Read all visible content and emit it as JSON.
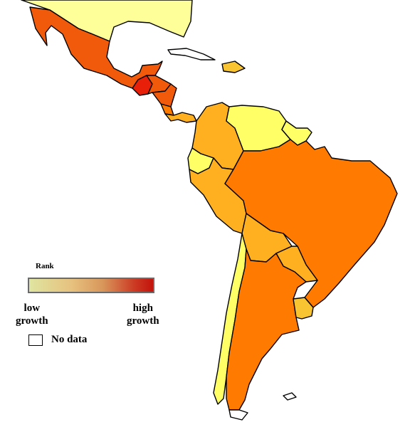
{
  "legend": {
    "title": "Rank",
    "low_label_1": "low",
    "low_label_2": "growth",
    "high_label_1": "high",
    "high_label_2": "growth",
    "nodata_label": "No data",
    "gradient_start_color": "#dfe5a0",
    "gradient_end_color": "#c4130c"
  },
  "colors": {
    "pale_yellow": "#ffff99",
    "yellow": "#ffff66",
    "gold": "#f9c431",
    "light_orange": "#ffb020",
    "orange": "#ff9900",
    "dark_orange": "#ff7a00",
    "orange_red": "#f05a0a",
    "red": "#e8200a",
    "no_data": "#ffffff"
  },
  "regions": [
    {
      "name": "United States",
      "color_key": "pale_yellow"
    },
    {
      "name": "Mexico",
      "color_key": "orange_red"
    },
    {
      "name": "Guatemala",
      "color_key": "red"
    },
    {
      "name": "Honduras",
      "color_key": "orange_red"
    },
    {
      "name": "Nicaragua",
      "color_key": "orange_red"
    },
    {
      "name": "Costa Rica",
      "color_key": "dark_orange"
    },
    {
      "name": "Panama",
      "color_key": "light_orange"
    },
    {
      "name": "Dominican Republic",
      "color_key": "gold"
    },
    {
      "name": "Colombia",
      "color_key": "light_orange"
    },
    {
      "name": "Venezuela",
      "color_key": "yellow"
    },
    {
      "name": "Guyana",
      "color_key": "yellow"
    },
    {
      "name": "Suriname",
      "color_key": "yellow"
    },
    {
      "name": "Ecuador",
      "color_key": "yellow"
    },
    {
      "name": "Peru",
      "color_key": "light_orange"
    },
    {
      "name": "Brazil",
      "color_key": "dark_orange"
    },
    {
      "name": "Bolivia",
      "color_key": "light_orange"
    },
    {
      "name": "Paraguay",
      "color_key": "light_orange"
    },
    {
      "name": "Chile",
      "color_key": "yellow"
    },
    {
      "name": "Argentina",
      "color_key": "dark_orange"
    },
    {
      "name": "Uruguay",
      "color_key": "gold"
    }
  ]
}
